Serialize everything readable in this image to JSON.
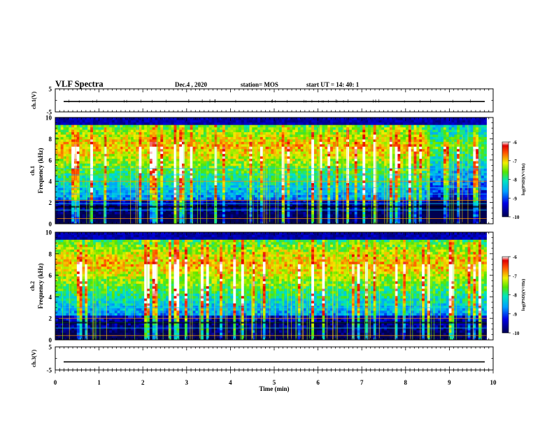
{
  "header": {
    "title": "VLF Spectra",
    "date": "Dec.4 , 2020",
    "station": "station= MOS",
    "start": "start UT = 14: 40: 1"
  },
  "chart_data": [
    {
      "type": "line",
      "panel": "ch1-waveform",
      "ylabel": "ch.1(V)",
      "ylim": [
        -5,
        5
      ],
      "yticks": [
        "5",
        "-5"
      ],
      "xlim": [
        0,
        10
      ],
      "series": [
        {
          "values": [
            -0.5,
            -0.5
          ]
        }
      ]
    },
    {
      "type": "heatmap",
      "panel": "ch1-spectrogram",
      "ylabel": "ch.1 Frequency (kHz)",
      "ylim": [
        0,
        10
      ],
      "yticks": [
        "0",
        "2",
        "4",
        "6",
        "8",
        "10"
      ],
      "xlim": [
        0,
        9.85
      ],
      "band_center_khz": 7.2,
      "colorbar": {
        "label": "log(PSD)(V²/Hz)",
        "ticks": [
          "-6",
          "-7",
          "-8",
          "-9",
          "-10"
        ],
        "range": [
          -10,
          -6
        ]
      }
    },
    {
      "type": "heatmap",
      "panel": "ch2-spectrogram",
      "ylabel": "ch.2 Frequency (kHz)",
      "ylim": [
        0,
        10
      ],
      "yticks": [
        "0",
        "2",
        "4",
        "6",
        "8",
        "10"
      ],
      "xlim": [
        0,
        9.85
      ],
      "band_center_khz": 7.0,
      "colorbar": {
        "label": "log(PSD)(V²/Hz)",
        "ticks": [
          "-6",
          "-7",
          "-8",
          "-9",
          "-10"
        ],
        "range": [
          -10,
          -6
        ]
      }
    },
    {
      "type": "line",
      "panel": "ch3-waveform",
      "ylabel": "ch.3(V)",
      "ylim": [
        -5,
        5
      ],
      "yticks": [
        "5",
        "-5"
      ],
      "xlim": [
        0,
        10
      ],
      "xlabel": "Time (min)",
      "xticks": [
        "0",
        "1",
        "2",
        "3",
        "4",
        "5",
        "6",
        "7",
        "8",
        "9",
        "10"
      ],
      "series": [
        {
          "values": [
            -1.5,
            -1.5
          ]
        }
      ]
    }
  ]
}
